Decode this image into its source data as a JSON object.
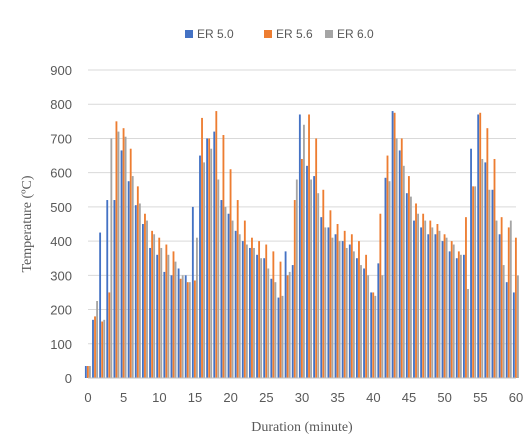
{
  "chart_data": {
    "type": "bar",
    "title": "",
    "xlabel": "Duration (minute)",
    "ylabel": "Temperature (ºC)",
    "xlim": [
      0,
      60
    ],
    "ylim": [
      0,
      900
    ],
    "x_ticks": [
      "0",
      "5",
      "10",
      "15",
      "20",
      "25",
      "30",
      "35",
      "40",
      "45",
      "50",
      "55",
      "60"
    ],
    "y_ticks": [
      "0",
      "100",
      "200",
      "300",
      "400",
      "500",
      "600",
      "700",
      "800",
      "900"
    ],
    "grid": true,
    "legend_position": "top",
    "categories": [
      0,
      1,
      2,
      3,
      4,
      5,
      6,
      7,
      8,
      9,
      10,
      11,
      12,
      13,
      14,
      15,
      16,
      17,
      18,
      19,
      20,
      21,
      22,
      23,
      24,
      25,
      26,
      27,
      28,
      29,
      30,
      31,
      32,
      33,
      34,
      35,
      36,
      37,
      38,
      39,
      40,
      41,
      42,
      43,
      44,
      45,
      46,
      47,
      48,
      49,
      50,
      51,
      52,
      53,
      54,
      55,
      56,
      57,
      58,
      59,
      60
    ],
    "series": [
      {
        "name": "ER 5.0",
        "color": "#4472C4",
        "values": [
          35,
          170,
          425,
          520,
          520,
          665,
          575,
          505,
          450,
          380,
          360,
          310,
          300,
          320,
          300,
          500,
          650,
          700,
          720,
          520,
          480,
          430,
          400,
          380,
          360,
          350,
          290,
          235,
          370,
          330,
          770,
          620,
          590,
          470,
          440,
          420,
          400,
          390,
          350,
          320,
          250,
          335,
          585,
          780,
          665,
          540,
          460,
          440,
          420,
          420,
          400,
          370,
          350,
          360,
          670,
          770,
          630,
          550,
          420,
          280,
          250
        ]
      },
      {
        "name": "ER 5.6",
        "color": "#ED7D31",
        "values": [
          35,
          180,
          165,
          250,
          750,
          730,
          670,
          560,
          480,
          430,
          410,
          390,
          370,
          290,
          280,
          285,
          760,
          700,
          780,
          710,
          610,
          520,
          460,
          410,
          400,
          390,
          370,
          340,
          300,
          520,
          640,
          770,
          700,
          550,
          490,
          450,
          430,
          420,
          400,
          360,
          250,
          480,
          650,
          775,
          700,
          590,
          510,
          480,
          460,
          450,
          420,
          400,
          370,
          470,
          560,
          775,
          730,
          640,
          470,
          440,
          410
        ]
      },
      {
        "name": "ER 6.0",
        "color": "#A5A5A5",
        "values": [
          35,
          225,
          170,
          700,
          720,
          705,
          590,
          510,
          460,
          420,
          380,
          360,
          340,
          300,
          280,
          410,
          630,
          670,
          580,
          500,
          460,
          420,
          390,
          380,
          350,
          320,
          280,
          240,
          310,
          580,
          740,
          580,
          540,
          440,
          410,
          400,
          380,
          370,
          330,
          300,
          240,
          300,
          575,
          700,
          620,
          530,
          480,
          460,
          440,
          430,
          410,
          390,
          360,
          260,
          560,
          640,
          550,
          460,
          330,
          460,
          300
        ]
      }
    ]
  }
}
